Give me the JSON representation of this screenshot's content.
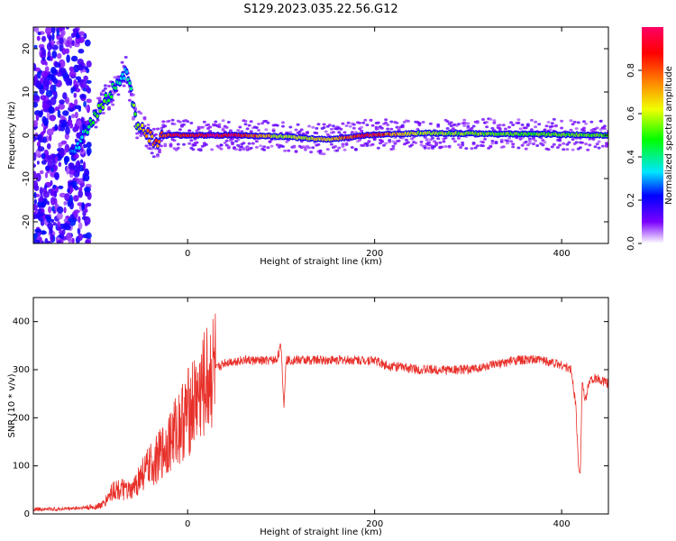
{
  "title": "S129.2023.035.22.56.G12",
  "chart_data": [
    {
      "type": "heatmap",
      "xlabel": "Height of straight line (km)",
      "ylabel": "Frequency (Hz)",
      "xlim": [
        -165,
        450
      ],
      "ylim": [
        -25,
        25
      ],
      "x_ticks": [
        0,
        200,
        400
      ],
      "y_ticks": [
        20,
        10,
        0,
        -10,
        -20
      ],
      "colorbar": {
        "label": "Normalized spectral amplitude",
        "range": [
          0,
          1
        ],
        "ticks": [
          "0.0",
          "0.2",
          "0.4",
          "0.6",
          "0.8"
        ],
        "colormap": "rainbow"
      },
      "ridge": [
        {
          "x": -120,
          "y": -3,
          "amp": 0.3
        },
        {
          "x": -105,
          "y": 2,
          "amp": 0.45
        },
        {
          "x": -95,
          "y": 6,
          "amp": 0.55
        },
        {
          "x": -85,
          "y": 9,
          "amp": 0.5
        },
        {
          "x": -75,
          "y": 12,
          "amp": 0.4
        },
        {
          "x": -65,
          "y": 15,
          "amp": 0.35
        },
        {
          "x": -55,
          "y": 3,
          "amp": 0.6
        },
        {
          "x": -45,
          "y": 1,
          "amp": 0.75
        },
        {
          "x": -35,
          "y": -2,
          "amp": 0.8
        },
        {
          "x": -25,
          "y": 0,
          "amp": 0.9
        },
        {
          "x": 50,
          "y": 0,
          "amp": 1.0
        },
        {
          "x": 100,
          "y": -0.3,
          "amp": 0.6
        },
        {
          "x": 150,
          "y": -1,
          "amp": 0.7
        },
        {
          "x": 190,
          "y": 0,
          "amp": 0.95
        },
        {
          "x": 250,
          "y": 0.5,
          "amp": 0.6
        },
        {
          "x": 350,
          "y": 0.3,
          "amp": 0.55
        },
        {
          "x": 450,
          "y": 0,
          "amp": 0.55
        }
      ]
    },
    {
      "type": "line",
      "xlabel": "Height of straight line (km)",
      "ylabel": "SNR (10 * v/v)",
      "xlim": [
        -165,
        450
      ],
      "ylim": [
        0,
        450
      ],
      "x_ticks": [
        0,
        200,
        400
      ],
      "y_ticks": [
        0,
        100,
        200,
        300,
        400
      ],
      "color": "#e8302a",
      "series": [
        {
          "x": [
            -165,
            -140,
            -120,
            -100,
            -90,
            -80,
            -70,
            -60,
            -50,
            -40,
            -30,
            -20,
            -10,
            0,
            10,
            20,
            25,
            30,
            40,
            60,
            80,
            95,
            100,
            103,
            105,
            110,
            150,
            200,
            210,
            250,
            300,
            330,
            350,
            380,
            400,
            410,
            415,
            418,
            420,
            422,
            425,
            430,
            440,
            450
          ],
          "y": [
            10,
            10,
            12,
            14,
            20,
            50,
            50,
            45,
            80,
            100,
            120,
            150,
            180,
            210,
            240,
            270,
            290,
            300,
            315,
            320,
            318,
            320,
            350,
            220,
            320,
            320,
            320,
            320,
            310,
            300,
            300,
            310,
            320,
            320,
            310,
            300,
            230,
            100,
            90,
            280,
            230,
            280,
            280,
            270
          ]
        }
      ]
    }
  ]
}
